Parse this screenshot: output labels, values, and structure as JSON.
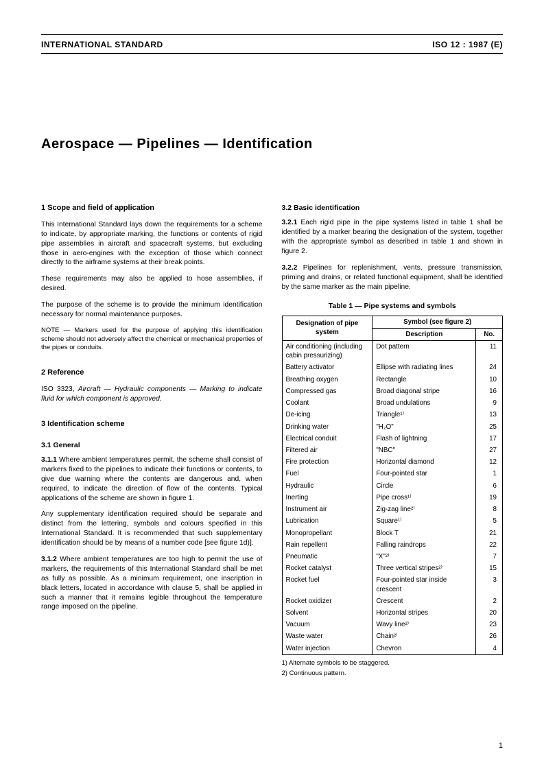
{
  "header": {
    "left": "INTERNATIONAL STANDARD",
    "right": "ISO 12 : 1987 (E)"
  },
  "title": "Aerospace — Pipelines — Identification",
  "sections": {
    "s1": {
      "heading": "1   Scope and field of application",
      "p1": "This International Standard lays down the requirements for a scheme to indicate, by appropriate marking, the functions or contents of rigid pipe assemblies in aircraft and spacecraft systems, but excluding those in aero-engines with the exception of those which connect directly to the airframe systems at their break points.",
      "p2": "These requirements may also be applied to hose assemblies, if desired.",
      "p3": "The purpose of the scheme is to provide the minimum identification necessary for normal maintenance purposes.",
      "note": "NOTE — Markers used for the purpose of applying this identification scheme should not adversely affect the chemical or mechanical properties of the pipes or conduits."
    },
    "s2": {
      "heading": "2   Reference",
      "ref": "ISO 3323, Aircraft — Hydraulic components — Marking to indicate fluid for which component is approved."
    },
    "s3": {
      "heading": "3   Identification scheme",
      "s31h": "3.1   General",
      "s311_lead": "3.1.1",
      "s311": "   Where ambient temperatures permit, the scheme shall consist of markers fixed to the pipelines to indicate their functions or contents, to give due warning where the contents are dangerous and, when required, to indicate the direction of flow of the contents. Typical applications of the scheme are shown in figure 1.",
      "s311b": "Any supplementary identification required should be separate and distinct from the lettering, symbols and colours specified in this International Standard. It is recommended that such supplementary identification should be by means of a number code [see figure 1d)].",
      "s312_lead": "3.1.2",
      "s312": "   Where ambient temperatures are too high to permit the use of markers, the requirements of this International Standard shall be met as fully as possible. As a minimum requirement, one inscription in black letters, located in accordance with clause 5, shall be applied in such a manner that it remains legible throughout the temperature range imposed on the pipeline.",
      "s32h": "3.2   Basic identification",
      "s321_lead": "3.2.1",
      "s321": "   Each rigid pipe in the pipe systems listed in table 1 shall be identified by a marker bearing the designation of the system, together with the appropriate symbol as described in table 1 and shown in figure 2.",
      "s322_lead": "3.2.2",
      "s322": "   Pipelines for replenishment, vents, pressure transmission, priming and drains, or related functional equipment, shall be identified by the same marker as the main pipeline."
    }
  },
  "table": {
    "caption": "Table 1 — Pipe systems and symbols",
    "head_designation": "Designation of pipe system",
    "head_symbol": "Symbol (see figure 2)",
    "head_desc": "Description",
    "head_no": "No.",
    "rows": [
      {
        "d": "Air conditioning (including cabin pressurizing)",
        "s": "Dot pattern",
        "n": "11"
      },
      {
        "d": "Battery activator",
        "s": "Ellipse with radiating lines",
        "n": "24"
      },
      {
        "d": "Breathing oxygen",
        "s": "Rectangle",
        "n": "10"
      },
      {
        "d": "Compressed gas",
        "s": "Broad diagonal stripe",
        "n": "16"
      },
      {
        "d": "Coolant",
        "s": "Broad undulations",
        "n": "9"
      },
      {
        "d": "De-icing",
        "s": "Triangle¹⁾",
        "n": "13"
      },
      {
        "d": "Drinking water",
        "s": "\"H₂O\"",
        "n": "25"
      },
      {
        "d": "Electrical conduit",
        "s": "Flash of lightning",
        "n": "17"
      },
      {
        "d": "Filtered air",
        "s": "\"NBC\"",
        "n": "27"
      },
      {
        "d": "Fire protection",
        "s": "Horizontal diamond",
        "n": "12"
      },
      {
        "d": "Fuel",
        "s": "Four-pointed star",
        "n": "1"
      },
      {
        "d": "Hydraulic",
        "s": "Circle",
        "n": "6"
      },
      {
        "d": "Inerting",
        "s": "Pipe cross¹⁾",
        "n": "19"
      },
      {
        "d": "Instrument air",
        "s": "Zig-zag line²⁾",
        "n": "8"
      },
      {
        "d": "Lubrication",
        "s": "Square¹⁾",
        "n": "5"
      },
      {
        "d": "Monopropellant",
        "s": "Block T",
        "n": "21"
      },
      {
        "d": "Rain repellent",
        "s": "Falling raindrops",
        "n": "22"
      },
      {
        "d": "Pneumatic",
        "s": "\"X\"²⁾",
        "n": "7"
      },
      {
        "d": "Rocket catalyst",
        "s": "Three vertical stripes²⁾",
        "n": "15"
      },
      {
        "d": "Rocket fuel",
        "s": "Four-pointed star inside crescent",
        "n": "3"
      },
      {
        "d": "Rocket oxidizer",
        "s": "Crescent",
        "n": "2"
      },
      {
        "d": "Solvent",
        "s": "Horizontal stripes",
        "n": "20"
      },
      {
        "d": "Vacuum",
        "s": "Wavy line²⁾",
        "n": "23"
      },
      {
        "d": "Waste water",
        "s": "Chain²⁾",
        "n": "26"
      },
      {
        "d": "Water injection",
        "s": "Chevron",
        "n": "4"
      }
    ],
    "fn1": "1)   Alternate symbols to be staggered.",
    "fn2": "2)   Continuous pattern."
  },
  "pagenum": "1"
}
